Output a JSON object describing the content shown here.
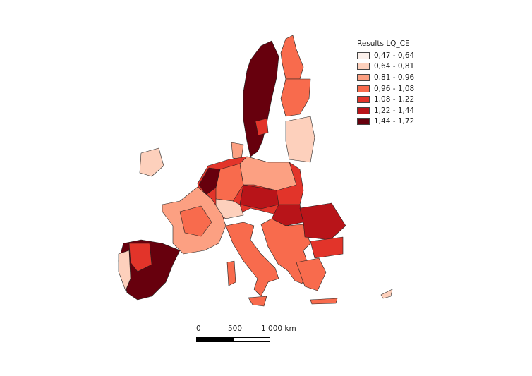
{
  "legend": {
    "title": "Results LQ_CE",
    "classes": [
      {
        "label": "0,47 - 0,64",
        "color": "#fcf1ec"
      },
      {
        "label": "0,64 - 0,81",
        "color": "#fdd0bc"
      },
      {
        "label": "0,81 - 0,96",
        "color": "#fca082"
      },
      {
        "label": "0,96 - 1,08",
        "color": "#f86b4d"
      },
      {
        "label": "1,08 - 1,22",
        "color": "#e2342a"
      },
      {
        "label": "1,22 - 1,44",
        "color": "#b81419"
      },
      {
        "label": "1,44 - 1,72",
        "color": "#67000d"
      }
    ]
  },
  "scalebar": {
    "label_0": "0",
    "label_mid": "500",
    "label_end": "1 000 km"
  }
}
